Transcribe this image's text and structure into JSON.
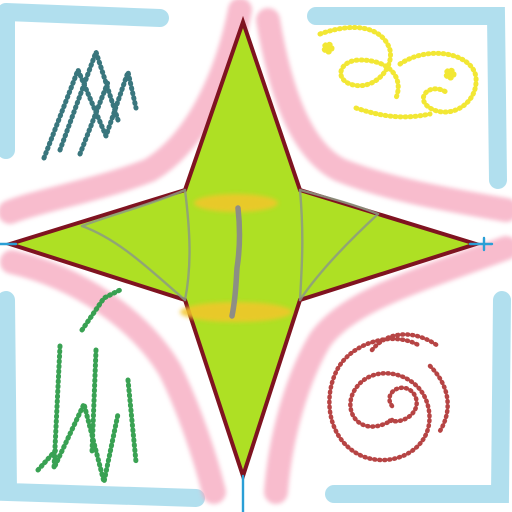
{
  "drawing": {
    "colors": {
      "background": "#ffffff",
      "frame_blue": "#a9dcec",
      "pink_glow": "#f6a6bd",
      "star_fill": "#aee024",
      "star_stroke": "#7f1320",
      "crease_gray": "#8c9b84",
      "center_stroke": "#8a8a8a",
      "yellow_band": "#f3c62a",
      "teal_scribble": "#2f6f77",
      "yellow_scribble": "#f2e62a",
      "green_scribble": "#2f9d4a",
      "red_scribble": "#b33a3a",
      "axis_blue": "#2a9fd6"
    },
    "icons": {
      "top_left": "teal-scribble",
      "top_right": "yellow-scribble",
      "bottom_left": "green-scribble",
      "bottom_right": "red-spiral-scribble"
    }
  }
}
